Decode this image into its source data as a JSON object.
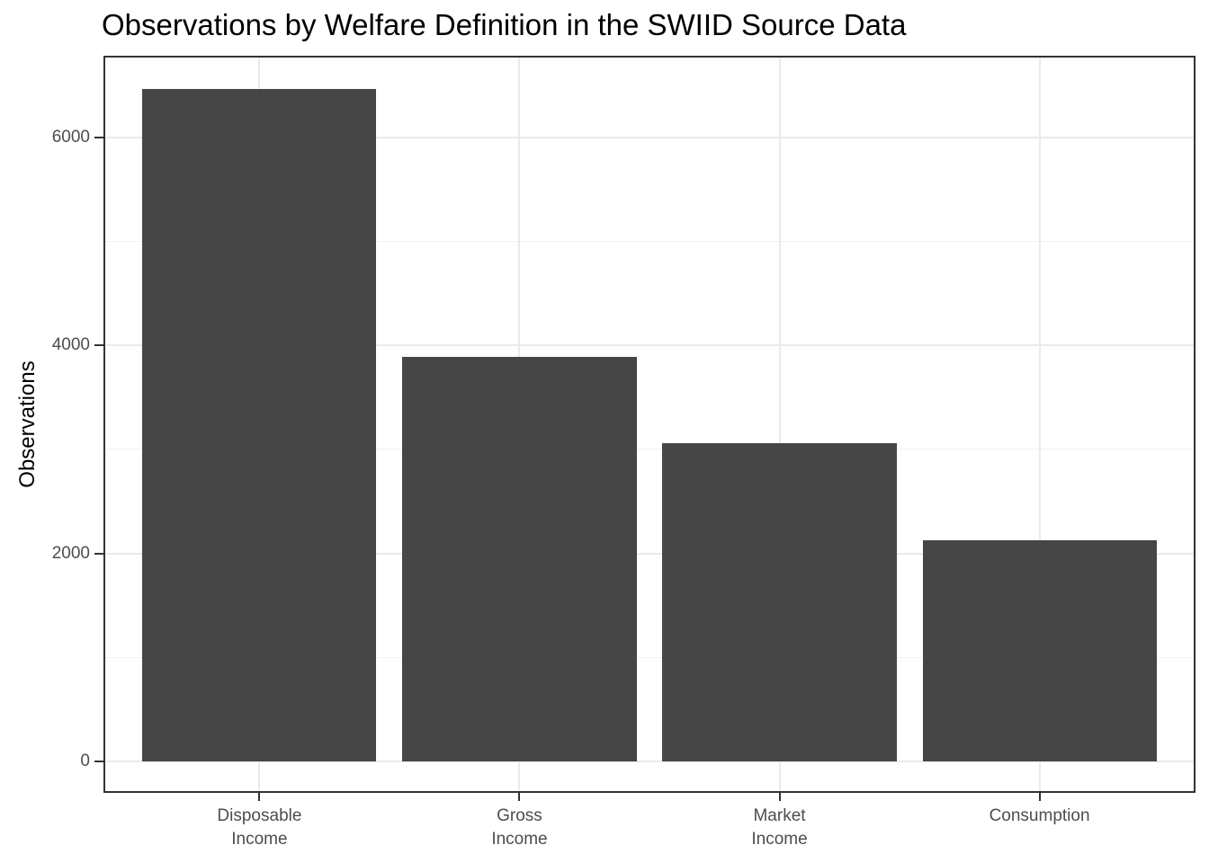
{
  "chart_data": {
    "type": "bar",
    "title": "Observations by Welfare Definition in the SWIID Source Data",
    "xlabel": "",
    "ylabel": "Observations",
    "categories": [
      "Disposable\nIncome",
      "Gross\nIncome",
      "Market\nIncome",
      "Consumption"
    ],
    "values": [
      6470,
      3890,
      3060,
      2130
    ],
    "ylim": [
      -303,
      6787
    ],
    "y_major_ticks": [
      0,
      2000,
      4000,
      6000
    ],
    "y_minor_ticks": [
      1000,
      3000,
      5000
    ],
    "grid": "horizontal major+minor; vertical major at category centers",
    "legend": false,
    "colors": {
      "bar_fill": "#464646",
      "grid_major": "#EAEAEA",
      "grid_minor": "#F1F1F1",
      "panel_border": "#333333",
      "tick_mark": "#333333",
      "axis_text": "#4D4D4D",
      "title_text": "#000000"
    }
  }
}
